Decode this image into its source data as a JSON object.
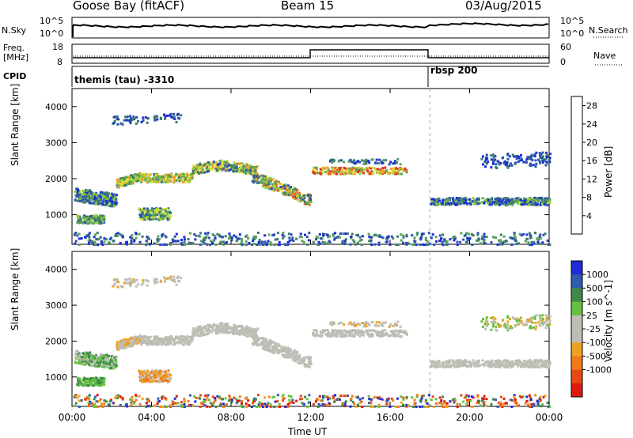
{
  "header": {
    "station": "Goose Bay (fitACF)",
    "beam": "Beam 15",
    "date": "03/Aug/2015"
  },
  "strip": {
    "nsky_label": "N.Sky",
    "nsearch_label": "N.Search",
    "freq_label": "Freq.",
    "freq_unit": "[MHz]",
    "nave_label": "Nave",
    "cpid_label": "CPID",
    "nsky_ticks": [
      "10^5",
      "10^0"
    ],
    "nsearch_ticks": [
      "10^5",
      "10^0"
    ],
    "freq_ticks": [
      "18",
      "8"
    ],
    "nave_ticks": [
      "60",
      "0"
    ],
    "cpid_segments": [
      {
        "label": "themis (tau) -3310",
        "start": "00:00"
      },
      {
        "label": "rbsp 200",
        "start": "18:00"
      }
    ]
  },
  "colors": {
    "power": [
      "#1c2fd6",
      "#2a52b0",
      "#3c7a6e",
      "#5aa15a",
      "#8fcf3a",
      "#d9e035",
      "#f0a430",
      "#ee6a2a",
      "#e4301f"
    ],
    "velocity": [
      "#1e2bd6",
      "#2e5bb0",
      "#3f8a4a",
      "#66c142",
      "#bdbdb5",
      "#bdbdb5",
      "#f0a020",
      "#f07a1a",
      "#e84a15",
      "#dd1a10"
    ]
  },
  "chart_data": [
    {
      "type": "heatmap",
      "title": "",
      "xlabel": "Time UT",
      "ylabel": "Slant Range [km]",
      "x_ticks": [
        "00:00",
        "04:00",
        "08:00",
        "12:00",
        "16:00",
        "20:00",
        "00:00"
      ],
      "y_ticks": [
        "1000",
        "2000",
        "3000",
        "4000"
      ],
      "xlim": [
        0,
        24
      ],
      "ylim": [
        180,
        4500
      ],
      "colorbar_label": "Power [dB]",
      "colorbar_ticks": [
        "4",
        "8",
        "12",
        "16",
        "20",
        "24",
        "28"
      ],
      "clim": [
        0,
        30
      ]
    },
    {
      "type": "heatmap",
      "title": "",
      "xlabel": "Time UT",
      "ylabel": "Slant Range [km]",
      "x_ticks": [
        "00:00",
        "04:00",
        "08:00",
        "12:00",
        "16:00",
        "20:00",
        "00:00"
      ],
      "y_ticks": [
        "1000",
        "2000",
        "3000",
        "4000"
      ],
      "xlim": [
        0,
        24
      ],
      "ylim": [
        180,
        4500
      ],
      "colorbar_label": "Velocity [m s^-1]",
      "colorbar_ticks": [
        "1000",
        "500",
        "100",
        "25",
        "-25",
        "-100",
        "-500",
        "-1000"
      ]
    }
  ],
  "axis": {
    "time_label": "Time UT"
  }
}
